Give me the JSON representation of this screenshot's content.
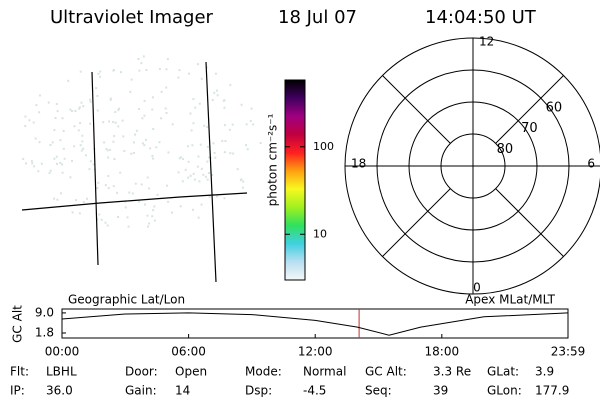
{
  "header": {
    "title": "Ultraviolet Imager",
    "date": "18 Jul 07",
    "time": "14:04:50 UT"
  },
  "colorbar": {
    "label": "photon cm⁻²s⁻¹",
    "scale": "log",
    "lim": [
      3,
      580
    ],
    "ticks": [
      10,
      100
    ],
    "colors": [
      "#f4f8f8",
      "#b8dff0",
      "#40d0e0",
      "#30e060",
      "#a0f020",
      "#f8f820",
      "#ffa010",
      "#ff2020",
      "#c00040",
      "#a00080",
      "#400060",
      "#000000"
    ]
  },
  "polar": {
    "mlt_labels": [
      "12",
      "6",
      "0",
      "18"
    ],
    "lat_circles": [
      80,
      70,
      60,
      50
    ],
    "lat_labels": [
      "80",
      "70",
      "60"
    ]
  },
  "timeline": {
    "y_label": "GC Alt",
    "left_note": "Geographic Lat/Lon",
    "right_note": "Apex MLat/MLT",
    "ylim": [
      0,
      10.4
    ],
    "yticks": [
      {
        "value": 9,
        "label": "9.0"
      },
      {
        "value": 1.8,
        "label": "1.8"
      }
    ],
    "xlim": [
      0,
      23.98
    ],
    "xticks": [
      {
        "value": 0,
        "label": "00:00"
      },
      {
        "value": 6,
        "label": "06:00"
      },
      {
        "value": 12,
        "label": "12:00"
      },
      {
        "value": 18,
        "label": "18:00"
      },
      {
        "value": 23.98,
        "label": "23:59"
      }
    ],
    "x": [
      0,
      3,
      6,
      9,
      12,
      14,
      15.5,
      17,
      20,
      23.98
    ],
    "values": [
      6.8,
      8.6,
      9.0,
      8.4,
      6.3,
      3.9,
      1.0,
      3.9,
      7.6,
      9.0
    ],
    "current": 14.08,
    "current_color": "#c03030"
  },
  "info": {
    "rows": [
      [
        {
          "label": "Flt:",
          "value": "LBHL"
        },
        {
          "label": "Door:",
          "value": "Open"
        },
        {
          "label": "Mode:",
          "value": "Normal"
        },
        {
          "label": "GC Alt:",
          "value": "3.3 Re"
        },
        {
          "label": "GLat:",
          "value": "3.9"
        }
      ],
      [
        {
          "label": "IP:",
          "value": "36.0"
        },
        {
          "label": "Gain:",
          "value": "14"
        },
        {
          "label": "Dsp:",
          "value": "-4.5"
        },
        {
          "label": "Seq:",
          "value": "39"
        },
        {
          "label": "GLon:",
          "value": "177.9"
        }
      ]
    ]
  }
}
